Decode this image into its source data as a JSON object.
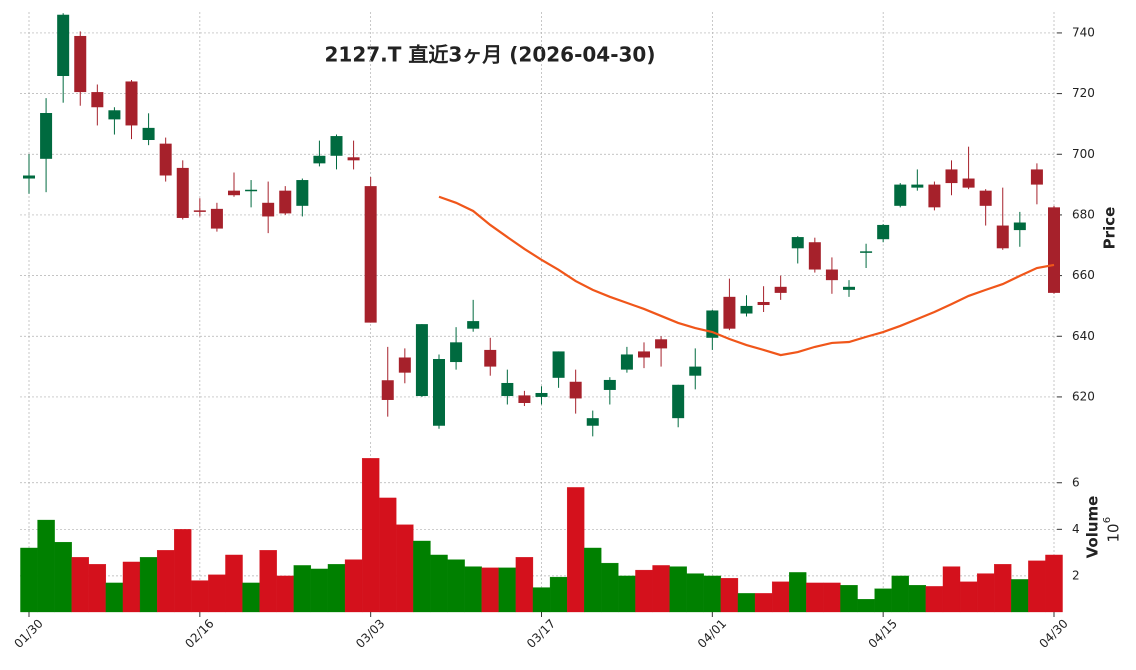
{
  "chart_data": {
    "type": "candlestick",
    "title": "2127.T  直近3ヶ月  (2026-04-30)",
    "categories": [
      "01/30",
      null,
      null,
      null,
      null,
      null,
      null,
      null,
      null,
      null,
      "02/16",
      null,
      null,
      null,
      null,
      null,
      null,
      null,
      null,
      null,
      "03/03",
      null,
      null,
      null,
      null,
      null,
      null,
      null,
      null,
      null,
      "03/17",
      null,
      null,
      null,
      null,
      null,
      null,
      null,
      null,
      null,
      "04/01",
      null,
      null,
      null,
      null,
      null,
      null,
      null,
      null,
      null,
      "04/15",
      null,
      null,
      null,
      null,
      null,
      null,
      null,
      null,
      null,
      "04/30"
    ],
    "open": [
      692,
      698.5,
      725.8,
      739,
      720.5,
      711.5,
      724,
      704.7,
      703.5,
      695.5,
      681.5,
      682,
      688,
      688,
      684,
      688,
      683,
      697,
      699.5,
      699,
      689.5,
      625.5,
      633,
      620.3,
      610.5,
      631.5,
      642.5,
      635.5,
      620.3,
      620.5,
      620,
      626.3,
      625,
      610.5,
      622.3,
      629,
      635,
      639,
      613,
      627,
      639.5,
      653,
      647.5,
      651.3,
      656.3,
      669,
      671,
      662,
      655.3,
      667.5,
      672,
      683,
      689,
      690,
      695,
      692,
      688,
      676.5,
      675,
      695,
      682.5
    ],
    "high": [
      700,
      718.5,
      746.5,
      740.5,
      723,
      715.5,
      724.5,
      713.5,
      705.5,
      698,
      685.5,
      684,
      694,
      691.5,
      691,
      689.5,
      692,
      704.5,
      706.5,
      704.5,
      692.5,
      636.5,
      636,
      644,
      634,
      643,
      652,
      639.5,
      629,
      622,
      623.5,
      635,
      629,
      615.5,
      626.5,
      636.5,
      638,
      640,
      624,
      636,
      648.7,
      659,
      653.5,
      656.5,
      660,
      673,
      672.5,
      666,
      658.5,
      670.5,
      677,
      690.5,
      695,
      691,
      698,
      702.5,
      688.5,
      689,
      681,
      697,
      683
    ],
    "low": [
      687,
      687.5,
      717,
      716,
      709.5,
      706.5,
      705,
      703,
      691,
      678.5,
      679.5,
      674.5,
      686,
      682.5,
      674,
      680,
      679.5,
      696,
      695,
      695,
      644.5,
      613.5,
      624.5,
      620,
      609.5,
      629,
      641.5,
      627,
      617.5,
      617,
      617.5,
      623,
      614.5,
      607,
      617.5,
      628,
      629.5,
      630,
      610,
      622.5,
      635.5,
      642,
      646.5,
      648,
      652,
      664,
      661,
      654,
      653,
      662.5,
      671,
      682.5,
      688,
      681.5,
      686.5,
      688.5,
      676.5,
      668.5,
      669.5,
      683.5,
      654
    ],
    "close": [
      693,
      713.6,
      746,
      720.5,
      715.5,
      714.5,
      709.5,
      708.7,
      693,
      679,
      681,
      675.5,
      686.5,
      688.3,
      679.5,
      680.5,
      691.5,
      699.5,
      706,
      698,
      644.5,
      619,
      628,
      644,
      632.5,
      638,
      645,
      630,
      624.6,
      618,
      621.3,
      635,
      619.5,
      613,
      625.6,
      634,
      633,
      636,
      624,
      630,
      648.5,
      642.5,
      650,
      650.3,
      654.3,
      672.7,
      662,
      658.5,
      656.3,
      668,
      676.7,
      690,
      690,
      682.5,
      690.5,
      689,
      683,
      669,
      677.5,
      690,
      654.3
    ],
    "up_color": "#006a3f",
    "down_color": "#a6212b",
    "ylim": [
      605.8,
      746.9
    ],
    "yticks": [
      620,
      640,
      660,
      680,
      700,
      720,
      740
    ],
    "y_label": "Price",
    "grid": true,
    "ma": {
      "color": "#f0561a",
      "values": [
        null,
        null,
        null,
        null,
        null,
        null,
        null,
        null,
        null,
        null,
        null,
        null,
        null,
        null,
        null,
        null,
        null,
        null,
        null,
        null,
        null,
        null,
        null,
        null,
        686,
        684,
        681.3,
        676.7,
        672.7,
        668.8,
        665.2,
        661.9,
        658.2,
        655.3,
        653,
        651,
        649,
        646.7,
        644.4,
        642.7,
        641.4,
        639.1,
        637.1,
        635.5,
        633.8,
        634.8,
        636.5,
        637.8,
        638.1,
        639.8,
        641.4,
        643.4,
        645.7,
        648,
        650.6,
        653.3,
        655.3,
        657.2,
        659.9,
        662.5,
        663.5
      ]
    },
    "volume": {
      "values": [
        3.2,
        4.4,
        3.45,
        2.8,
        2.5,
        1.7,
        2.6,
        2.8,
        3.1,
        4.0,
        1.8,
        2.05,
        2.9,
        1.7,
        3.1,
        2.0,
        2.45,
        2.3,
        2.5,
        2.7,
        7.05,
        5.35,
        4.2,
        3.5,
        2.9,
        2.7,
        2.4,
        2.35,
        2.35,
        2.8,
        1.5,
        1.95,
        5.8,
        3.2,
        2.55,
        2.0,
        2.25,
        2.45,
        2.4,
        2.1,
        2.0,
        1.9,
        1.25,
        1.25,
        1.75,
        2.15,
        1.7,
        1.7,
        1.6,
        1.0,
        1.45,
        2.0,
        1.6,
        1.55,
        2.4,
        1.75,
        2.1,
        2.5,
        1.85,
        2.65,
        2.9
      ],
      "up_color": "#008000",
      "down_color": "#d4111c",
      "ylim": [
        0.45,
        7.75
      ],
      "yticks": [
        2,
        4,
        6
      ],
      "label": "Volume",
      "scale_base": "10",
      "scale_exponent": "6"
    }
  }
}
